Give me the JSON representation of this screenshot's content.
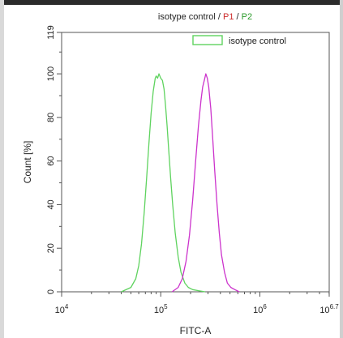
{
  "chart_data": {
    "type": "line",
    "title_parts": [
      {
        "text": "isotype control",
        "color": "#222222"
      },
      {
        "text": " / ",
        "color": "#222222"
      },
      {
        "text": "P1",
        "color": "#cc2a2a"
      },
      {
        "text": " / ",
        "color": "#222222"
      },
      {
        "text": "P2",
        "color": "#2a9a2a"
      }
    ],
    "xlabel": "FITC-A",
    "ylabel": "Count  [%]",
    "x_scale": "log",
    "xlim": [
      10000,
      5011872
    ],
    "ylim": [
      0,
      119
    ],
    "x_ticks": [
      {
        "value": 10000,
        "base": "10",
        "exp": "4"
      },
      {
        "value": 100000,
        "base": "10",
        "exp": "5"
      },
      {
        "value": 1000000,
        "base": "10",
        "exp": "6"
      },
      {
        "value": 5011872,
        "base": "10",
        "exp": "6.7"
      }
    ],
    "y_ticks": [
      "0",
      "20",
      "40",
      "60",
      "80",
      "100",
      "119"
    ],
    "y_tick_values": [
      0,
      20,
      40,
      60,
      80,
      100,
      119
    ],
    "legend": {
      "position": "top-right",
      "entries": [
        {
          "label": "isotype control",
          "color": "#5fd35f"
        }
      ]
    },
    "series": [
      {
        "color": "#5fd35f",
        "x": [
          40000,
          50000,
          56000,
          60000,
          64000,
          68000,
          72000,
          76000,
          80000,
          84000,
          88000,
          90000,
          93000,
          96000,
          100000,
          104000,
          108000,
          112000,
          116000,
          120000,
          126000,
          132000,
          140000,
          150000,
          160000,
          175000,
          190000,
          210000,
          240000,
          280000
        ],
        "y": [
          0,
          2,
          6,
          12,
          22,
          36,
          52,
          68,
          82,
          92,
          98,
          99,
          98,
          100,
          98,
          97,
          93,
          85,
          76,
          66,
          52,
          40,
          27,
          16,
          9,
          4,
          2,
          1,
          0.5,
          0
        ]
      },
      {
        "color": "#cc33cc",
        "x": [
          130000,
          150000,
          165000,
          180000,
          195000,
          210000,
          225000,
          240000,
          255000,
          265000,
          275000,
          285000,
          295000,
          305000,
          320000,
          335000,
          350000,
          370000,
          390000,
          410000,
          440000,
          470000,
          510000,
          560000,
          620000
        ],
        "y": [
          0,
          2,
          6,
          14,
          26,
          42,
          60,
          76,
          88,
          94,
          97,
          100,
          98,
          94,
          84,
          70,
          56,
          40,
          27,
          17,
          9,
          4,
          2,
          1,
          0
        ]
      }
    ]
  }
}
